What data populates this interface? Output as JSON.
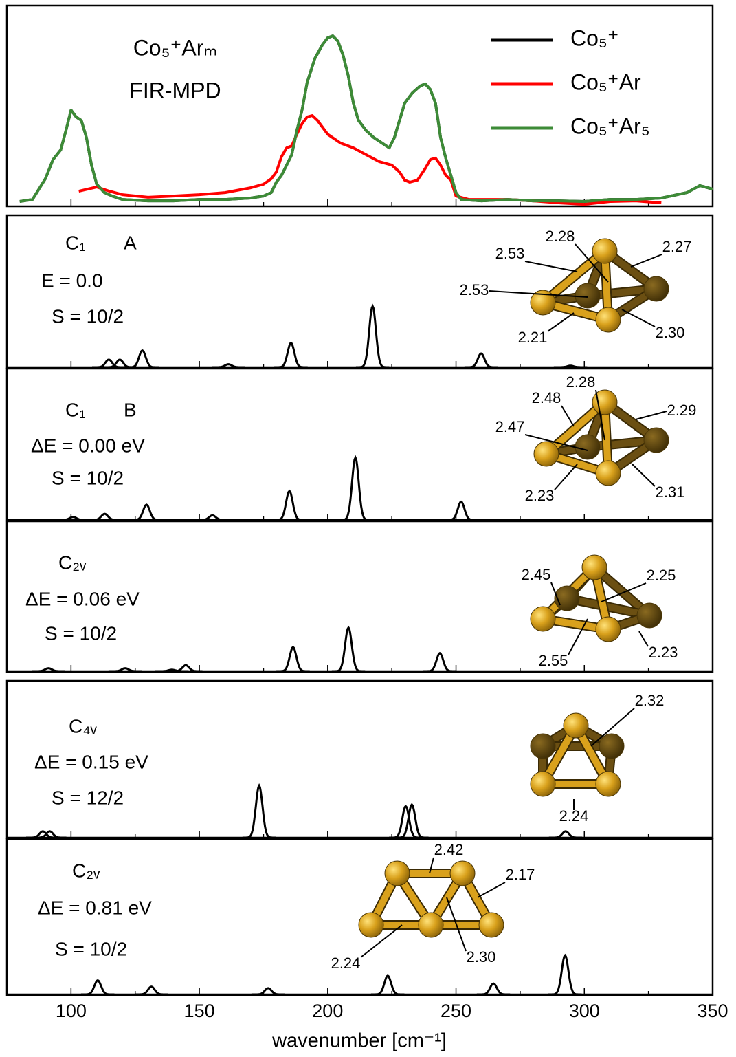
{
  "chart_data": [
    {
      "type": "line",
      "title": "Co₅⁺Arₘ",
      "subtitle": "FIR-MPD",
      "xlim": [
        75,
        350
      ],
      "ylim": [
        0,
        100
      ],
      "legend": "upper right",
      "series": [
        {
          "name": "Co₅⁺",
          "color": "#000000",
          "x": [
            80,
            85,
            90,
            93,
            96,
            98,
            100,
            102,
            104,
            106,
            108,
            110,
            113,
            116,
            120,
            130,
            140,
            150,
            160,
            170,
            175,
            178,
            180,
            182,
            184,
            186,
            188,
            190,
            192,
            195,
            198,
            200,
            202,
            204,
            206,
            208,
            210,
            212,
            215,
            218,
            220,
            222,
            224,
            226,
            228,
            230,
            233,
            236,
            238,
            240,
            242,
            244,
            246,
            248,
            250,
            252,
            260,
            270,
            280,
            290,
            300,
            310,
            320,
            330,
            340,
            345,
            350
          ],
          "values": [
            2.4,
            3.4,
            13.7,
            23.3,
            28.1,
            37.7,
            47.9,
            44.5,
            42.8,
            34.2,
            20.5,
            11,
            6.8,
            5.1,
            3.4,
            2.7,
            2.7,
            3.4,
            3.4,
            4.1,
            5.1,
            6.8,
            12,
            15.4,
            20.5,
            25.7,
            37.7,
            47.9,
            61.6,
            73.6,
            80.5,
            83.9,
            84.9,
            82.2,
            75.3,
            65.1,
            51.4,
            42.8,
            37.7,
            34.2,
            32.5,
            30.8,
            29.1,
            34.2,
            42.8,
            51.4,
            56.5,
            59.9,
            61,
            58.2,
            51.4,
            34.2,
            24,
            15.4,
            6.8,
            3.4,
            2.7,
            3.4,
            2.7,
            2.7,
            2.4,
            3.4,
            3.4,
            4.1,
            6.8,
            10.3,
            8.6
          ]
        },
        {
          "name": "Co₅⁺Ar",
          "color": "#ff0000",
          "x": [
            103,
            110,
            115,
            120,
            130,
            140,
            150,
            160,
            170,
            175,
            178,
            180,
            182,
            184,
            186,
            188,
            190,
            192,
            194,
            196,
            198,
            200,
            205,
            210,
            215,
            220,
            225,
            228,
            230,
            232,
            235,
            238,
            240,
            242,
            244,
            246,
            248,
            250,
            255,
            260,
            270,
            280,
            290,
            300,
            310,
            320,
            330
          ],
          "values": [
            7.5,
            9.6,
            7.5,
            5.8,
            4.5,
            5.1,
            5.8,
            6.8,
            9.2,
            11,
            13.7,
            17.1,
            24.7,
            29.1,
            30.1,
            35.9,
            41.1,
            44.5,
            45.2,
            42.8,
            39.4,
            35.9,
            31.5,
            29.1,
            25.7,
            22.3,
            20.5,
            17.1,
            13,
            12,
            13,
            18.8,
            23.3,
            24,
            20.5,
            15.4,
            13,
            5.1,
            3.4,
            3.4,
            3.4,
            2.7,
            1.7,
            1,
            2.4,
            2.7,
            1.7
          ]
        },
        {
          "name": "Co₅⁺Ar₅",
          "color": "#3d8b37",
          "x": [
            80,
            85,
            90,
            93,
            96,
            98,
            100,
            102,
            104,
            106,
            108,
            110,
            113,
            116,
            120,
            130,
            140,
            150,
            160,
            170,
            175,
            178,
            180,
            182,
            184,
            186,
            188,
            190,
            192,
            195,
            198,
            200,
            202,
            204,
            206,
            208,
            210,
            212,
            215,
            218,
            220,
            222,
            224,
            226,
            228,
            230,
            233,
            236,
            238,
            240,
            242,
            244,
            246,
            248,
            250,
            252,
            260,
            270,
            280,
            290,
            300,
            310,
            320,
            330,
            340,
            345,
            350
          ],
          "values": [
            2.4,
            3.4,
            13.7,
            23.3,
            28.1,
            37.7,
            47.9,
            44.5,
            42.8,
            34.2,
            20.5,
            11,
            6.8,
            5.1,
            3.4,
            2.7,
            2.7,
            3.4,
            3.4,
            4.1,
            5.1,
            6.8,
            12,
            15.4,
            20.5,
            25.7,
            37.7,
            47.9,
            61.6,
            73.6,
            80.5,
            83.9,
            84.9,
            82.2,
            75.3,
            65.1,
            51.4,
            42.8,
            37.7,
            34.2,
            32.5,
            30.8,
            29.1,
            34.2,
            42.8,
            51.4,
            56.5,
            59.9,
            61,
            58.2,
            51.4,
            34.2,
            24,
            15.4,
            6.8,
            3.4,
            2.7,
            3.4,
            2.7,
            2.7,
            2.4,
            3.4,
            3.4,
            4.1,
            6.8,
            10.3,
            8.6
          ]
        }
      ]
    },
    {
      "type": "spectrum",
      "symmetry": "C₁",
      "isomer": "A",
      "energy": "E = 0.0",
      "spin": "S = 10/2",
      "xlim": [
        75,
        350
      ],
      "ylim": [
        0,
        100
      ],
      "color": "#000000",
      "peaks": {
        "x": [
          114.7,
          119,
          127.8,
          161.3,
          185.7,
          217.5,
          259.8,
          294.6
        ],
        "intensity": [
          5,
          5,
          11,
          2,
          16,
          40,
          9,
          1
        ]
      },
      "bond_lengths": [
        "2.53",
        "2.28",
        "2.27",
        "2.53",
        "2.21",
        "2.30"
      ]
    },
    {
      "type": "spectrum",
      "symmetry": "C₁",
      "isomer": "B",
      "energy": "ΔE = 0.00 eV",
      "spin": "S = 10/2",
      "xlim": [
        75,
        350
      ],
      "ylim": [
        0,
        100
      ],
      "color": "#000000",
      "peaks": {
        "x": [
          100.8,
          113.1,
          129.4,
          155.1,
          185.1,
          210.8,
          252.0
        ],
        "intensity": [
          2,
          4,
          10,
          3,
          19,
          41,
          12
        ]
      },
      "bond_lengths": [
        "2.48",
        "2.28",
        "2.29",
        "2.47",
        "2.23",
        "2.31"
      ]
    },
    {
      "type": "spectrum",
      "symmetry": "C₂ᵥ",
      "energy": "ΔE = 0.06 eV",
      "spin": "S = 10/2",
      "xlim": [
        75,
        350
      ],
      "ylim": [
        0,
        100
      ],
      "color": "#000000",
      "peaks": {
        "x": [
          91.2,
          121.1,
          139.3,
          144.7,
          186.5,
          208.1,
          243.7
        ],
        "intensity": [
          2,
          2,
          1,
          4,
          16,
          29,
          12
        ]
      },
      "bond_lengths": [
        "2.45",
        "2.25",
        "2.55",
        "2.23"
      ]
    },
    {
      "type": "spectrum",
      "symmetry": "C₄ᵥ",
      "energy": "ΔE = 0.15 eV",
      "spin": "S = 12/2",
      "xlim": [
        75,
        350
      ],
      "ylim": [
        0,
        100
      ],
      "color": "#000000",
      "peaks": {
        "x": [
          89.0,
          91.7,
          173.3,
          230.4,
          232.8,
          292.7
        ],
        "intensity": [
          4,
          4,
          33,
          20,
          21,
          4
        ]
      },
      "bond_lengths": [
        "2.32",
        "2.24"
      ]
    },
    {
      "type": "spectrum",
      "symmetry": "C₂ᵥ",
      "energy": "ΔE = 0.81 eV",
      "spin": "S = 10/2",
      "xlim": [
        75,
        350
      ],
      "ylim": [
        0,
        100
      ],
      "color": "#000000",
      "peaks": {
        "x": [
          110.4,
          131.3,
          176.8,
          223.4,
          264.6,
          292.5
        ],
        "intensity": [
          9,
          5,
          4,
          12,
          7,
          25
        ]
      },
      "bond_lengths": [
        "2.42",
        "2.17",
        "2.30",
        "2.24"
      ],
      "xlabel": "wavenumber [cm⁻¹]",
      "xticks": [
        100,
        150,
        200,
        250,
        300,
        350
      ],
      "xminorticks": [
        125,
        175,
        225,
        275,
        325
      ]
    }
  ]
}
